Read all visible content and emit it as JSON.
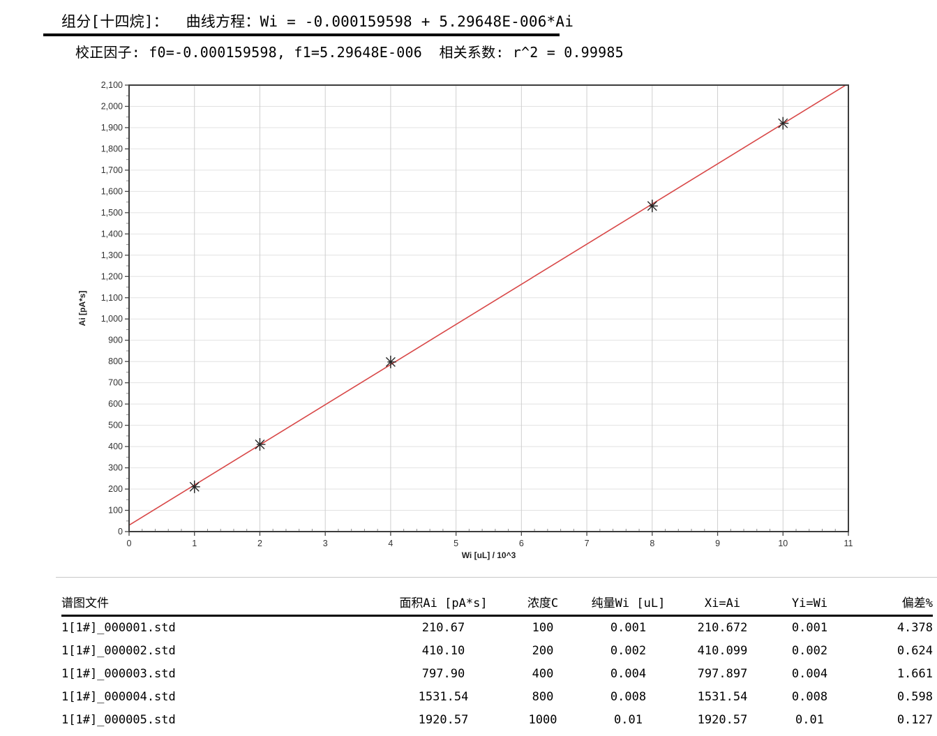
{
  "header": {
    "line1": "组分[十四烷]：  曲线方程：Wi = -0.000159598 + 5.29648E-006*Ai",
    "line2": "校正因子: f0=-0.000159598, f1=5.29648E-006  相关系数: r^2 = 0.99985",
    "component": "十四烷",
    "equation": "Wi = -0.000159598 + 5.29648E-006*Ai",
    "f0": "-0.000159598",
    "f1": "5.29648E-006",
    "r_squared": "0.99985"
  },
  "chart_data": {
    "type": "scatter",
    "title": "",
    "xlabel": "Wi [uL] / 10^3",
    "ylabel": "Ai [pA*s]",
    "xlim": [
      0,
      11
    ],
    "ylim": [
      0,
      2100
    ],
    "x_major_step": 1,
    "x_minor_step": 0.2,
    "y_major_step": 100,
    "y_minor_step": 50,
    "grid": true,
    "legend": "none",
    "points": [
      {
        "x": 1,
        "y": 210.67
      },
      {
        "x": 2,
        "y": 410.1
      },
      {
        "x": 4,
        "y": 797.9
      },
      {
        "x": 8,
        "y": 1531.54
      },
      {
        "x": 10,
        "y": 1920.57
      }
    ],
    "fit_line": {
      "x1": 0,
      "y1": 30.1,
      "x2": 10.96,
      "y2": 2100
    },
    "marker": "asterisk",
    "colors": {
      "line": "#d84747",
      "marker": "#262626",
      "grid_v": "#cfcfcf",
      "grid_h": "#e2e2e2",
      "frame": "#3c3c3c",
      "tick": "#444444",
      "minor_tick": "#8a8a8a"
    }
  },
  "table": {
    "columns": [
      {
        "label": "谱图文件",
        "align": "left"
      },
      {
        "label": "面积Ai [pA*s]",
        "align": "center"
      },
      {
        "label": "浓度C",
        "align": "center"
      },
      {
        "label": "纯量Wi [uL]",
        "align": "center"
      },
      {
        "label": "Xi=Ai",
        "align": "center"
      },
      {
        "label": "Yi=Wi",
        "align": "center"
      },
      {
        "label": "偏差%",
        "align": "right"
      }
    ],
    "rows": [
      [
        "1[1#]_000001.std",
        "210.67",
        "100",
        "0.001",
        "210.672",
        "0.001",
        "4.378"
      ],
      [
        "1[1#]_000002.std",
        "410.10",
        "200",
        "0.002",
        "410.099",
        "0.002",
        "0.624"
      ],
      [
        "1[1#]_000003.std",
        "797.90",
        "400",
        "0.004",
        "797.897",
        "0.004",
        "1.661"
      ],
      [
        "1[1#]_000004.std",
        "1531.54",
        "800",
        "0.008",
        "1531.54",
        "0.008",
        "0.598"
      ],
      [
        "1[1#]_000005.std",
        "1920.57",
        "1000",
        "0.01",
        "1920.57",
        "0.01",
        "0.127"
      ]
    ]
  }
}
